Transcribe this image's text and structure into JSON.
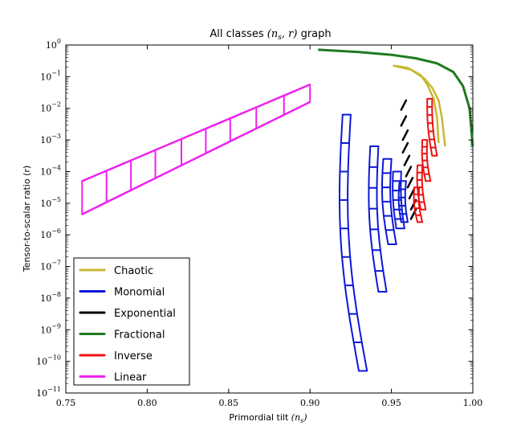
{
  "chart_data": {
    "type": "line",
    "title": "All classes (n_s, r) graph",
    "title_prefix": "All classes",
    "title_math": "(n",
    "title_sub": "s",
    "title_suffix": ", r)",
    "title_end": " graph",
    "xlabel": "Primordial tilt",
    "xlabel_math": "(n",
    "xlabel_sub": "s",
    "xlabel_end": ")",
    "ylabel": "Tensor-to-scalar ratio (r)",
    "xlim": [
      0.75,
      1.0
    ],
    "ylim_log10": [
      -11,
      0
    ],
    "xticks": [
      "0.75",
      "0.80",
      "0.85",
      "0.90",
      "0.95",
      "1.00"
    ],
    "xtick_values": [
      0.75,
      0.8,
      0.85,
      0.9,
      0.95,
      1.0
    ],
    "ytick_exponents": [
      0,
      -1,
      -2,
      -3,
      -4,
      -5,
      -6,
      -7,
      -8,
      -9,
      -10,
      -11
    ],
    "ytick_base": "10",
    "legend_position": "lower-left",
    "series": [
      {
        "name": "Chaotic",
        "color": "#c8b830",
        "kind": "band",
        "lower": [
          [
            0.951,
            -0.65
          ],
          [
            0.962,
            -0.78
          ],
          [
            0.97,
            -1.05
          ],
          [
            0.975,
            -1.35
          ],
          [
            0.979,
            -1.75
          ],
          [
            0.981,
            -2.3
          ],
          [
            0.983,
            -3.2
          ]
        ],
        "upper": [
          [
            0.951,
            -0.65
          ],
          [
            0.96,
            -0.72
          ],
          [
            0.968,
            -0.95
          ],
          [
            0.972,
            -1.25
          ],
          [
            0.976,
            -1.7
          ],
          [
            0.978,
            -2.3
          ],
          [
            0.979,
            -3.1
          ]
        ]
      },
      {
        "name": "Monomial",
        "color": "#0b18d8",
        "kind": "ladders",
        "ladders": [
          {
            "x0": [
              0.93,
              0.92
            ],
            "x1": [
              0.935,
              0.925
            ],
            "y": [
              -10.3,
              -2.2
            ],
            "rungs": 9,
            "bend": -0.006
          },
          {
            "x0": [
              0.942,
              0.937
            ],
            "x1": [
              0.947,
              0.942
            ],
            "y": [
              -7.8,
              -3.2
            ],
            "rungs": 7,
            "bend": -0.003
          },
          {
            "x0": [
              0.948,
              0.945
            ],
            "x1": [
              0.953,
              0.95
            ],
            "y": [
              -6.3,
              -3.6
            ],
            "rungs": 6,
            "bend": -0.002
          },
          {
            "x0": [
              0.953,
              0.951
            ],
            "x1": [
              0.958,
              0.956
            ],
            "y": [
              -5.8,
              -4.0
            ],
            "rungs": 6,
            "bend": -0.001
          },
          {
            "x0": [
              0.956,
              0.955
            ],
            "x1": [
              0.96,
              0.959
            ],
            "y": [
              -5.6,
              -4.3
            ],
            "rungs": 5,
            "bend": -0.001
          }
        ]
      },
      {
        "name": "Exponential",
        "color": "#000000",
        "kind": "dashes",
        "dashes": [
          [
            0.956,
            0.959,
            -2.05,
            -1.75
          ],
          [
            0.956,
            0.959,
            -2.55,
            -2.25
          ],
          [
            0.957,
            0.96,
            -3.0,
            -2.7
          ],
          [
            0.957,
            0.96,
            -3.4,
            -3.1
          ],
          [
            0.958,
            0.961,
            -3.8,
            -3.5
          ],
          [
            0.959,
            0.962,
            -4.15,
            -3.85
          ],
          [
            0.96,
            0.963,
            -4.5,
            -4.2
          ],
          [
            0.961,
            0.964,
            -4.85,
            -4.55
          ],
          [
            0.962,
            0.965,
            -5.2,
            -4.9
          ],
          [
            0.962,
            0.965,
            -5.5,
            -5.2
          ]
        ]
      },
      {
        "name": "Fractional",
        "color": "#1f7a1f",
        "kind": "curve",
        "points": [
          [
            0.905,
            -0.15
          ],
          [
            0.93,
            -0.22
          ],
          [
            0.95,
            -0.31
          ],
          [
            0.965,
            -0.42
          ],
          [
            0.978,
            -0.58
          ],
          [
            0.988,
            -0.85
          ],
          [
            0.994,
            -1.3
          ],
          [
            0.998,
            -2.0
          ],
          [
            1.0,
            -3.2
          ]
        ]
      },
      {
        "name": "Inverse",
        "color": "#ee1111",
        "kind": "ladders",
        "ladders": [
          {
            "x0": [
              0.975,
              0.972
            ],
            "x1": [
              0.978,
              0.975
            ],
            "y": [
              -3.5,
              -1.7
            ],
            "rungs": 7,
            "bend": -0.001
          },
          {
            "x0": [
              0.971,
              0.969
            ],
            "x1": [
              0.974,
              0.972
            ],
            "y": [
              -4.3,
              -3.0
            ],
            "rungs": 6,
            "bend": -0.001
          },
          {
            "x0": [
              0.968,
              0.966
            ],
            "x1": [
              0.971,
              0.969
            ],
            "y": [
              -5.2,
              -3.8
            ],
            "rungs": 6,
            "bend": -0.001
          },
          {
            "x0": [
              0.966,
              0.964
            ],
            "x1": [
              0.969,
              0.967
            ],
            "y": [
              -5.6,
              -4.5
            ],
            "rungs": 5,
            "bend": -0.001
          }
        ]
      },
      {
        "name": "Linear",
        "color": "#ee22ee",
        "kind": "band",
        "lower": [
          [
            0.76,
            -5.35
          ],
          [
            0.9,
            -1.8
          ]
        ],
        "upper": [
          [
            0.76,
            -4.3
          ],
          [
            0.9,
            -1.25
          ]
        ],
        "rungs": [
          0.76,
          0.775,
          0.79,
          0.805,
          0.821,
          0.836,
          0.851,
          0.867,
          0.884,
          0.9
        ]
      }
    ]
  }
}
